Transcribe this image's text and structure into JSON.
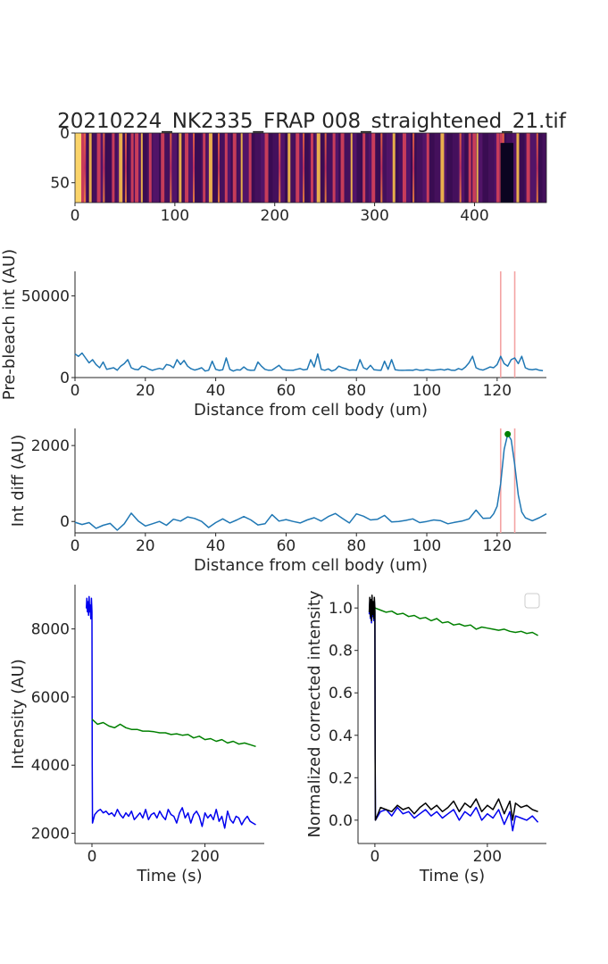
{
  "title": "20210224_NK2335_FRAP 008_straightened_21.tif",
  "colors": {
    "blue_line": "#1f77b4",
    "roi": "#f4a3a3",
    "raw_bleach": "#0000ee",
    "raw_ref": "#008000",
    "norm_bleach": "#0000ee",
    "norm_ref": "#008000",
    "norm_corrected": "#000000",
    "peak_marker": "#008000",
    "axis": "#262626"
  },
  "chart_data": [
    {
      "type": "heatmap",
      "title": "20210224_NK2335_FRAP 008_straightened_21.tif",
      "xlim": [
        0,
        472
      ],
      "ylim": [
        70,
        0
      ],
      "xticks": [
        0,
        100,
        200,
        300,
        400
      ],
      "yticks": [
        0,
        50
      ],
      "colormap": "inferno",
      "bright_columns": [
        2,
        4,
        6,
        9,
        14,
        22,
        28,
        37,
        44,
        50,
        56,
        60,
        66,
        74,
        86,
        95,
        104,
        110,
        118,
        128,
        134,
        143,
        150,
        158,
        166,
        174,
        190,
        204,
        213,
        221,
        228,
        236,
        242,
        250,
        258,
        266,
        276,
        288,
        297,
        306,
        318,
        328,
        338,
        352,
        366,
        385,
        394,
        398,
        402,
        422,
        425,
        428,
        442,
        452,
        462
      ],
      "dark_region": {
        "x": [
          426,
          439
        ],
        "y": [
          10,
          70
        ]
      }
    },
    {
      "type": "line",
      "xlabel": "Distance from cell body (um)",
      "ylabel": "Pre-bleach int (AU)",
      "xlim": [
        0,
        134
      ],
      "ylim": [
        0,
        65000
      ],
      "xticks": [
        0,
        20,
        40,
        60,
        80,
        100,
        120
      ],
      "yticks": [
        0,
        50000
      ],
      "roi_lines_x": [
        121,
        125
      ],
      "series": [
        {
          "x": [
            0,
            1,
            2,
            3,
            4,
            5,
            6,
            7,
            8,
            9,
            10,
            11,
            12,
            13,
            14,
            15,
            16,
            17,
            18,
            19,
            20,
            21,
            22,
            23,
            24,
            25,
            26,
            27,
            28,
            29,
            30,
            31,
            32,
            33,
            34,
            35,
            36,
            37,
            38,
            39,
            40,
            41,
            42,
            43,
            44,
            45,
            46,
            47,
            48,
            49,
            50,
            51,
            52,
            53,
            54,
            55,
            56,
            57,
            58,
            59,
            60,
            61,
            62,
            63,
            64,
            65,
            66,
            67,
            68,
            69,
            70,
            71,
            72,
            73,
            74,
            75,
            76,
            77,
            78,
            79,
            80,
            81,
            82,
            83,
            84,
            85,
            86,
            87,
            88,
            89,
            90,
            91,
            92,
            93,
            94,
            95,
            96,
            97,
            98,
            99,
            100,
            101,
            102,
            103,
            104,
            105,
            106,
            107,
            108,
            109,
            110,
            111,
            112,
            113,
            114,
            115,
            116,
            117,
            118,
            119,
            120,
            121,
            122,
            123,
            124,
            125,
            126,
            127,
            128,
            129,
            130,
            131,
            132,
            133
          ],
          "values": [
            14500,
            13000,
            15000,
            12000,
            9000,
            11000,
            8000,
            6000,
            9500,
            5000,
            5500,
            6000,
            4500,
            7000,
            8500,
            11000,
            6000,
            5000,
            4800,
            7000,
            6500,
            5200,
            4400,
            5100,
            5600,
            5000,
            8000,
            7500,
            6000,
            11000,
            8000,
            10500,
            7000,
            5400,
            4600,
            5200,
            6000,
            4000,
            4500,
            10000,
            5000,
            4400,
            4800,
            12000,
            5000,
            4000,
            4800,
            4600,
            6500,
            4800,
            4400,
            4500,
            9500,
            7000,
            5000,
            4500,
            4600,
            6000,
            7500,
            5000,
            4600,
            4500,
            4400,
            5000,
            5500,
            4700,
            5000,
            11000,
            6500,
            14500,
            5000,
            4500,
            5300,
            4000,
            4800,
            7000,
            6000,
            5400,
            4500,
            4700,
            4500,
            11000,
            6000,
            5000,
            7500,
            4800,
            4600,
            4400,
            10000,
            5000,
            11000,
            4800,
            4500,
            4400,
            4500,
            4600,
            4400,
            5000,
            4500,
            4400,
            5000,
            4600,
            4500,
            4800,
            5000,
            4600,
            5200,
            4500,
            4400,
            5500,
            4800,
            6500,
            9000,
            13000,
            6000,
            5000,
            4600,
            5500,
            6500,
            6000,
            8000,
            13000,
            8500,
            7000,
            11000,
            12000,
            8500,
            13000,
            6000,
            5000,
            4800,
            5200,
            4500,
            4200
          ]
        }
      ]
    },
    {
      "type": "line",
      "xlabel": "Distance from cell body (um)",
      "ylabel": "Int diff (AU)",
      "xlim": [
        0,
        134
      ],
      "ylim": [
        -300,
        2450
      ],
      "xticks": [
        0,
        20,
        40,
        60,
        80,
        100,
        120
      ],
      "yticks": [
        0,
        2000
      ],
      "roi_lines_x": [
        121,
        125
      ],
      "peak_point": {
        "x": 123,
        "y": 2300
      },
      "series": [
        {
          "x": [
            0,
            2,
            4,
            6,
            8,
            10,
            12,
            14,
            16,
            18,
            20,
            22,
            24,
            26,
            28,
            30,
            32,
            34,
            36,
            38,
            40,
            42,
            44,
            46,
            48,
            50,
            52,
            54,
            56,
            58,
            60,
            62,
            64,
            66,
            68,
            70,
            72,
            74,
            76,
            78,
            80,
            82,
            84,
            86,
            88,
            90,
            92,
            94,
            96,
            98,
            100,
            102,
            104,
            106,
            108,
            110,
            112,
            114,
            116,
            118,
            119,
            120,
            121,
            122,
            123,
            124,
            125,
            126,
            127,
            128,
            130,
            132,
            134
          ],
          "values": [
            -20,
            -80,
            -30,
            -180,
            -100,
            -50,
            -230,
            -60,
            220,
            10,
            -120,
            -60,
            0,
            -100,
            60,
            10,
            120,
            80,
            0,
            -160,
            -30,
            70,
            -40,
            40,
            130,
            40,
            -90,
            -60,
            180,
            10,
            50,
            0,
            -40,
            40,
            100,
            10,
            130,
            210,
            80,
            -40,
            200,
            140,
            40,
            60,
            160,
            -10,
            0,
            30,
            70,
            -30,
            0,
            40,
            20,
            -60,
            -20,
            10,
            70,
            300,
            80,
            90,
            200,
            400,
            1000,
            1900,
            2300,
            2150,
            1500,
            700,
            250,
            100,
            20,
            100,
            200
          ]
        }
      ]
    },
    {
      "type": "line",
      "xlabel": "Time (s)",
      "ylabel": "Intensity (AU)",
      "xlim": [
        -30,
        305
      ],
      "ylim": [
        1700,
        9300
      ],
      "xticks": [
        0,
        200
      ],
      "yticks": [
        2000,
        4000,
        6000,
        8000
      ],
      "series": [
        {
          "color": "#0000ee",
          "x": [
            -10,
            -9,
            -8,
            -7,
            -6,
            -5,
            -4,
            -3,
            -2,
            -1,
            0,
            0.5,
            1,
            5,
            10,
            15,
            20,
            25,
            30,
            35,
            40,
            45,
            50,
            55,
            60,
            65,
            70,
            75,
            80,
            85,
            90,
            95,
            100,
            105,
            110,
            115,
            120,
            125,
            130,
            135,
            140,
            145,
            150,
            155,
            160,
            165,
            170,
            175,
            180,
            185,
            190,
            195,
            200,
            205,
            210,
            215,
            220,
            225,
            230,
            235,
            240,
            245,
            250,
            255,
            260,
            265,
            270,
            275,
            280,
            285,
            290
          ],
          "values": [
            8600,
            8900,
            8500,
            8800,
            8400,
            8950,
            8500,
            8700,
            8300,
            8900,
            8500,
            4000,
            2300,
            2550,
            2650,
            2700,
            2600,
            2650,
            2550,
            2600,
            2500,
            2700,
            2550,
            2450,
            2600,
            2500,
            2650,
            2400,
            2500,
            2600,
            2450,
            2700,
            2400,
            2550,
            2600,
            2450,
            2650,
            2500,
            2400,
            2700,
            2550,
            2500,
            2300,
            2600,
            2750,
            2450,
            2600,
            2300,
            2550,
            2650,
            2500,
            2200,
            2600,
            2450,
            2550,
            2400,
            2700,
            2350,
            2500,
            2150,
            2650,
            2400,
            2300,
            2500,
            2450,
            2250,
            2400,
            2500,
            2350,
            2300,
            2250
          ]
        },
        {
          "color": "#008000",
          "x": [
            0,
            10,
            20,
            30,
            40,
            50,
            60,
            70,
            80,
            90,
            100,
            110,
            120,
            130,
            140,
            150,
            160,
            170,
            180,
            190,
            200,
            210,
            220,
            230,
            240,
            250,
            260,
            270,
            280,
            290
          ],
          "values": [
            5350,
            5200,
            5250,
            5150,
            5100,
            5200,
            5100,
            5050,
            5050,
            5000,
            5000,
            4980,
            4950,
            4950,
            4900,
            4920,
            4880,
            4900,
            4800,
            4850,
            4750,
            4780,
            4700,
            4750,
            4650,
            4700,
            4620,
            4650,
            4600,
            4550
          ]
        }
      ]
    },
    {
      "type": "line",
      "xlabel": "Time (s)",
      "ylabel": "Normalized corrected intensity",
      "xlim": [
        -30,
        305
      ],
      "ylim": [
        -0.11,
        1.11
      ],
      "xticks": [
        0,
        200
      ],
      "yticks": [
        0.0,
        0.2,
        0.4,
        0.6,
        0.8,
        1.0
      ],
      "legend": "top-right",
      "series": [
        {
          "color": "#0000ee",
          "x": [
            -10,
            -9,
            -8,
            -7,
            -6,
            -5,
            -4,
            -3,
            -2,
            -1,
            0,
            0.5,
            1,
            10,
            20,
            30,
            40,
            50,
            60,
            70,
            80,
            90,
            100,
            110,
            120,
            130,
            140,
            150,
            160,
            170,
            180,
            190,
            200,
            210,
            220,
            230,
            240,
            245,
            250,
            260,
            270,
            280,
            290
          ],
          "values": [
            0.97,
            1.03,
            0.95,
            1.02,
            0.93,
            1.04,
            0.96,
            1.01,
            0.94,
            1.03,
            0.98,
            0.3,
            0.0,
            0.04,
            0.05,
            0.02,
            0.06,
            0.03,
            0.04,
            0.01,
            0.03,
            0.05,
            0.02,
            0.04,
            0.01,
            0.03,
            0.05,
            0.0,
            0.04,
            0.02,
            0.06,
            0.0,
            0.03,
            0.01,
            0.05,
            -0.02,
            0.04,
            -0.05,
            0.02,
            0.01,
            0.0,
            0.02,
            -0.01
          ]
        },
        {
          "color": "#008000",
          "x": [
            0,
            10,
            20,
            30,
            40,
            50,
            60,
            70,
            80,
            90,
            100,
            110,
            120,
            130,
            140,
            150,
            160,
            170,
            180,
            190,
            200,
            210,
            220,
            230,
            240,
            250,
            260,
            270,
            280,
            290
          ],
          "values": [
            1.0,
            0.99,
            0.98,
            0.985,
            0.97,
            0.975,
            0.96,
            0.965,
            0.95,
            0.955,
            0.94,
            0.95,
            0.93,
            0.935,
            0.92,
            0.925,
            0.915,
            0.92,
            0.9,
            0.91,
            0.905,
            0.9,
            0.895,
            0.9,
            0.89,
            0.885,
            0.89,
            0.88,
            0.885,
            0.87
          ]
        },
        {
          "color": "#000000",
          "x": [
            -10,
            -9,
            -8,
            -7,
            -6,
            -5,
            -4,
            -3,
            -2,
            -1,
            0,
            0.5,
            1,
            10,
            20,
            30,
            40,
            50,
            60,
            70,
            80,
            90,
            100,
            110,
            120,
            130,
            140,
            150,
            160,
            170,
            180,
            190,
            200,
            210,
            220,
            230,
            240,
            245,
            250,
            260,
            270,
            280,
            290
          ],
          "values": [
            0.98,
            1.05,
            0.96,
            1.04,
            0.94,
            1.06,
            0.97,
            1.03,
            0.95,
            1.05,
            1.0,
            0.3,
            0.0,
            0.06,
            0.05,
            0.04,
            0.07,
            0.05,
            0.06,
            0.03,
            0.06,
            0.08,
            0.05,
            0.07,
            0.04,
            0.06,
            0.09,
            0.04,
            0.08,
            0.06,
            0.1,
            0.04,
            0.07,
            0.05,
            0.1,
            0.03,
            0.09,
            0.0,
            0.08,
            0.06,
            0.07,
            0.05,
            0.04
          ]
        }
      ]
    }
  ]
}
